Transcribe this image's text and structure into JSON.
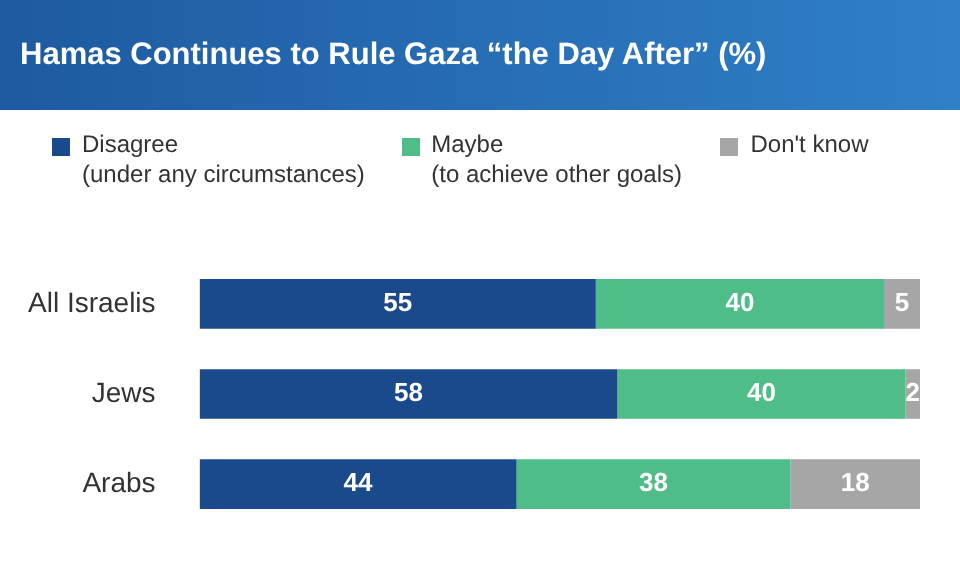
{
  "chart_data": {
    "type": "bar",
    "orientation": "horizontal",
    "stacked": true,
    "title": "Hamas Continues to Rule Gaza “the Day After” (%)",
    "categories": [
      "All Israelis",
      "Jews",
      "Arabs"
    ],
    "series": [
      {
        "name": "Disagree\n(under any circumstances)",
        "color": "#1b4a8c",
        "values": [
          55,
          58,
          44
        ]
      },
      {
        "name": "Maybe\n(to achieve other goals)",
        "color": "#4fbd87",
        "values": [
          40,
          40,
          38
        ]
      },
      {
        "name": "Don't know",
        "color": "#a6a6a6",
        "values": [
          5,
          2,
          18
        ]
      }
    ],
    "data_labels": true,
    "legend": "top",
    "grid": false,
    "tick_labels": "y"
  }
}
